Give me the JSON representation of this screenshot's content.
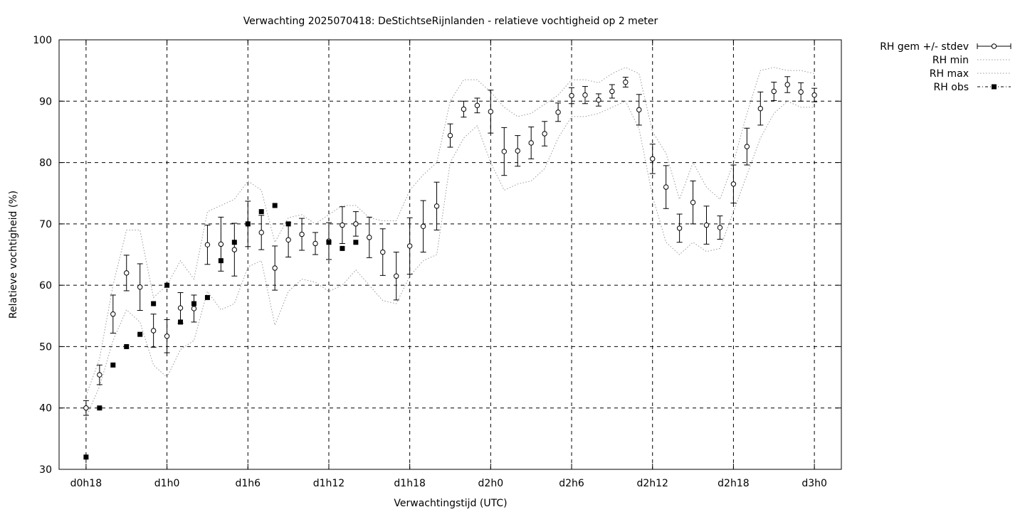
{
  "chart_data": {
    "type": "line",
    "title": "Verwachting 2025070418: DeStichtseRijnlanden - relatieve vochtigheid op 2 meter",
    "xlabel": "Verwachtingstijd (UTC)",
    "ylabel": "Relatieve vochtigheid (%)",
    "xlim": [
      -2,
      56
    ],
    "ylim": [
      30,
      100
    ],
    "y_ticks": [
      30,
      40,
      50,
      60,
      70,
      80,
      90,
      100
    ],
    "x_ticks": [
      {
        "x": 0,
        "label": "d0h18"
      },
      {
        "x": 6,
        "label": "d1h0"
      },
      {
        "x": 12,
        "label": "d1h6"
      },
      {
        "x": 18,
        "label": "d1h12"
      },
      {
        "x": 24,
        "label": "d1h18"
      },
      {
        "x": 30,
        "label": "d2h0"
      },
      {
        "x": 36,
        "label": "d2h6"
      },
      {
        "x": 42,
        "label": "d2h12"
      },
      {
        "x": 48,
        "label": "d2h18"
      },
      {
        "x": 54,
        "label": "d3h0"
      }
    ],
    "grid": true,
    "legend_position": "outside-top-right",
    "series": [
      {
        "name": "RH gem +/- stdev",
        "style": "errorbars",
        "x": [
          0,
          1,
          2,
          3,
          4,
          5,
          6,
          7,
          8,
          9,
          10,
          11,
          12,
          13,
          14,
          15,
          16,
          17,
          18,
          19,
          20,
          21,
          22,
          23,
          24,
          25,
          26,
          27,
          28,
          29,
          30,
          31,
          32,
          33,
          34,
          35,
          36,
          37,
          38,
          39,
          40,
          41,
          42,
          43,
          44,
          45,
          46,
          47,
          48,
          49,
          50,
          51,
          52,
          53,
          54
        ],
        "mean": [
          40.0,
          45.4,
          55.3,
          62.0,
          59.7,
          52.6,
          51.7,
          56.3,
          56.2,
          66.6,
          66.7,
          65.8,
          70.0,
          68.6,
          62.8,
          67.4,
          68.3,
          66.8,
          67.2,
          69.8,
          70.0,
          67.8,
          65.4,
          61.5,
          66.4,
          69.6,
          72.9,
          84.4,
          88.7,
          89.3,
          88.3,
          81.8,
          81.9,
          83.2,
          84.7,
          88.2,
          90.9,
          91.0,
          90.2,
          91.6,
          93.1,
          88.6,
          80.6,
          76.0,
          69.3,
          73.5,
          69.8,
          69.4,
          76.5,
          82.6,
          88.8,
          91.6,
          92.7,
          91.5,
          91.0
        ],
        "stdev": [
          1.2,
          1.6,
          3.1,
          2.9,
          3.8,
          2.7,
          2.7,
          2.5,
          2.2,
          3.2,
          4.4,
          4.3,
          3.7,
          2.8,
          3.6,
          2.8,
          2.6,
          1.8,
          3.0,
          3.0,
          2.0,
          3.3,
          3.8,
          3.9,
          4.6,
          4.2,
          3.9,
          1.9,
          1.3,
          1.2,
          3.5,
          3.9,
          2.5,
          2.6,
          2.0,
          1.5,
          1.3,
          1.4,
          1.0,
          1.1,
          0.8,
          2.5,
          2.4,
          3.5,
          2.3,
          3.5,
          3.1,
          1.9,
          3.1,
          3.0,
          2.7,
          1.5,
          1.3,
          1.5,
          1.1
        ]
      },
      {
        "name": "RH min",
        "style": "dotted",
        "x": [
          0,
          1,
          2,
          3,
          4,
          5,
          6,
          7,
          8,
          9,
          10,
          11,
          12,
          13,
          14,
          15,
          16,
          17,
          18,
          19,
          20,
          21,
          22,
          23,
          24,
          25,
          26,
          27,
          28,
          29,
          30,
          31,
          32,
          33,
          34,
          35,
          36,
          37,
          38,
          39,
          40,
          41,
          42,
          43,
          44,
          45,
          46,
          47,
          48,
          49,
          50,
          51,
          52,
          53,
          54
        ],
        "values": [
          38.5,
          43.5,
          51.0,
          56.0,
          54.0,
          47.0,
          45.0,
          49.5,
          51.0,
          59.0,
          56.0,
          57.0,
          63.0,
          64.0,
          53.5,
          59.0,
          61.0,
          60.5,
          59.0,
          60.0,
          62.5,
          60.0,
          57.5,
          57.0,
          61.5,
          64.0,
          65.0,
          80.0,
          84.0,
          86.0,
          80.0,
          75.5,
          76.5,
          77.0,
          79.0,
          84.0,
          87.5,
          87.5,
          88.0,
          89.0,
          90.0,
          85.5,
          74.5,
          67.0,
          65.0,
          67.0,
          65.5,
          66.0,
          72.0,
          78.0,
          84.0,
          88.0,
          90.0,
          89.0,
          89.0
        ]
      },
      {
        "name": "RH max",
        "style": "dotted",
        "x": [
          0,
          1,
          2,
          3,
          4,
          5,
          6,
          7,
          8,
          9,
          10,
          11,
          12,
          13,
          14,
          15,
          16,
          17,
          18,
          19,
          20,
          21,
          22,
          23,
          24,
          25,
          26,
          27,
          28,
          29,
          30,
          31,
          32,
          33,
          34,
          35,
          36,
          37,
          38,
          39,
          40,
          41,
          42,
          43,
          44,
          45,
          46,
          47,
          48,
          49,
          50,
          51,
          52,
          53,
          54
        ],
        "values": [
          42.0,
          48.0,
          60.0,
          69.0,
          69.0,
          58.0,
          60.0,
          64.0,
          61.0,
          72.0,
          73.0,
          74.0,
          77.0,
          75.5,
          67.0,
          71.0,
          71.5,
          70.0,
          71.5,
          73.0,
          73.0,
          71.0,
          70.5,
          70.5,
          75.5,
          78.0,
          80.0,
          90.0,
          93.5,
          93.5,
          91.5,
          89.0,
          87.5,
          88.0,
          89.5,
          91.0,
          93.5,
          93.5,
          93.0,
          94.5,
          95.5,
          94.5,
          85.0,
          81.5,
          74.0,
          80.0,
          76.0,
          74.0,
          80.0,
          88.0,
          95.0,
          95.5,
          95.0,
          95.0,
          94.5
        ]
      },
      {
        "name": "RH obs",
        "style": "markers",
        "x": [
          0,
          1,
          2,
          3,
          4,
          5,
          6,
          7,
          8,
          9,
          10,
          11,
          12,
          13,
          14,
          15,
          18,
          19,
          20
        ],
        "values": [
          32,
          40,
          47,
          50,
          52,
          57,
          60,
          54,
          57,
          58,
          64,
          67,
          70,
          72,
          73,
          70,
          67,
          66,
          67
        ]
      }
    ]
  }
}
